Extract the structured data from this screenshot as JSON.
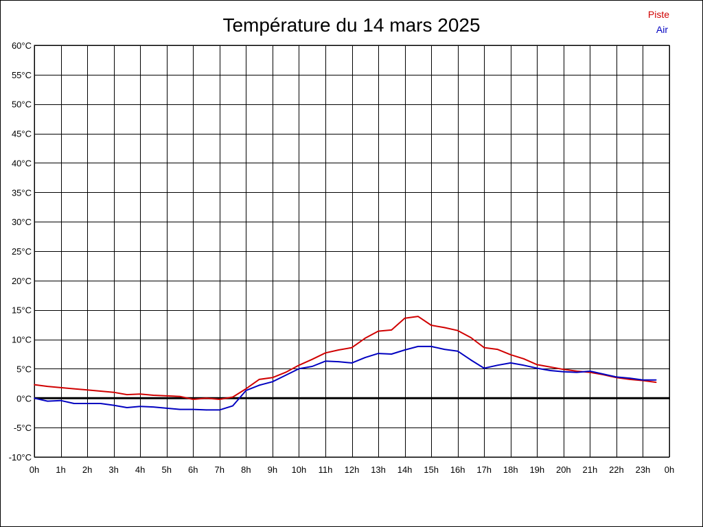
{
  "chart_data": {
    "type": "line",
    "title": "Température du 14 mars 2025",
    "xlabel": "",
    "ylabel": "",
    "ylim": [
      -10,
      60
    ],
    "xlim": [
      0,
      24
    ],
    "x_tick_labels": [
      "0h",
      "1h",
      "2h",
      "3h",
      "4h",
      "5h",
      "6h",
      "7h",
      "8h",
      "9h",
      "10h",
      "11h",
      "12h",
      "13h",
      "14h",
      "15h",
      "16h",
      "17h",
      "18h",
      "19h",
      "20h",
      "21h",
      "22h",
      "23h",
      "0h"
    ],
    "y_tick_labels": [
      "60°C",
      "55°C",
      "50°C",
      "45°C",
      "40°C",
      "35°C",
      "30°C",
      "25°C",
      "20°C",
      "15°C",
      "10°C",
      "5°C",
      "0°C",
      "-5°C",
      "-10°C"
    ],
    "y_tick_values": [
      60,
      55,
      50,
      45,
      40,
      35,
      30,
      25,
      20,
      15,
      10,
      5,
      0,
      -5,
      -10
    ],
    "grid": true,
    "legend_position": "top-right",
    "series": [
      {
        "name": "Piste",
        "color": "#d00000",
        "x": [
          0,
          0.5,
          1,
          1.5,
          2,
          2.5,
          3,
          3.5,
          4,
          4.5,
          5,
          5.5,
          6,
          6.5,
          7,
          7.5,
          8,
          8.5,
          9,
          9.5,
          10,
          10.5,
          11,
          11.5,
          12,
          12.5,
          13,
          13.5,
          14,
          14.5,
          15,
          15.5,
          16,
          16.5,
          17,
          17.5,
          18,
          18.5,
          19,
          19.5,
          20,
          20.5,
          21,
          21.5,
          22,
          22.5,
          23,
          23.5
        ],
        "values": [
          2.3,
          2.0,
          1.8,
          1.6,
          1.4,
          1.2,
          1.0,
          0.6,
          0.7,
          0.5,
          0.4,
          0.3,
          -0.2,
          0.0,
          -0.2,
          0.2,
          1.6,
          3.2,
          3.5,
          4.4,
          5.6,
          6.6,
          7.7,
          8.2,
          8.6,
          10.2,
          11.4,
          11.6,
          13.6,
          13.9,
          12.4,
          12.0,
          11.5,
          10.3,
          8.6,
          8.3,
          7.4,
          6.7,
          5.7,
          5.3,
          4.9,
          4.6,
          4.4,
          4.0,
          3.5,
          3.2,
          3.0,
          2.7
        ]
      },
      {
        "name": "Air",
        "color": "#0000c0",
        "x": [
          0,
          0.5,
          1,
          1.5,
          2,
          2.5,
          3,
          3.5,
          4,
          4.5,
          5,
          5.5,
          6,
          6.5,
          7,
          7.5,
          8,
          8.5,
          9,
          9.5,
          10,
          10.5,
          11,
          11.5,
          12,
          12.5,
          13,
          13.5,
          14,
          14.5,
          15,
          15.5,
          16,
          16.5,
          17,
          17.5,
          18,
          18.5,
          19,
          19.5,
          20,
          20.5,
          21,
          21.5,
          22,
          22.5,
          23,
          23.5
        ],
        "values": [
          0.0,
          -0.5,
          -0.4,
          -0.9,
          -0.9,
          -0.9,
          -1.2,
          -1.6,
          -1.4,
          -1.5,
          -1.7,
          -1.9,
          -1.9,
          -2.0,
          -2.0,
          -1.3,
          1.3,
          2.2,
          2.8,
          3.9,
          5.0,
          5.4,
          6.3,
          6.2,
          6.0,
          6.9,
          7.6,
          7.5,
          8.2,
          8.8,
          8.8,
          8.3,
          8.0,
          6.5,
          5.1,
          5.6,
          6.0,
          5.6,
          5.1,
          4.7,
          4.5,
          4.4,
          4.6,
          4.1,
          3.6,
          3.4,
          3.1,
          3.1
        ]
      }
    ]
  }
}
